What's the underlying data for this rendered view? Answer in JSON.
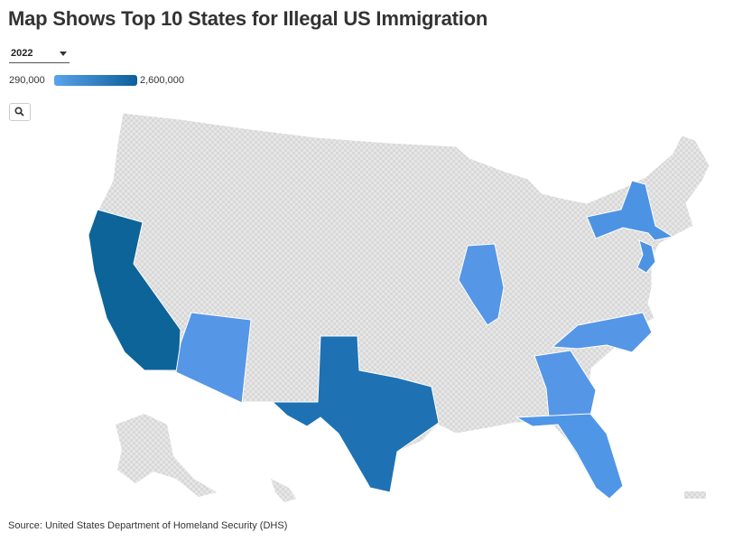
{
  "header": {
    "title": "Map Shows Top 10 States for Illegal US Immigration"
  },
  "controls": {
    "year_selected": "2022",
    "zoom_icon": "search-icon"
  },
  "legend": {
    "min_label": "290,000",
    "max_label": "2,600,000",
    "min_color": "#5aa3eb",
    "max_color": "#0d5f9a"
  },
  "map": {
    "no_data_color": "#e3e3e3",
    "highlighted_states": [
      {
        "state": "California",
        "color": "#0d6499"
      },
      {
        "state": "Texas",
        "color": "#1e72b3"
      },
      {
        "state": "Florida",
        "color": "#4f97e6"
      },
      {
        "state": "Arizona",
        "color": "#5596e6"
      },
      {
        "state": "Illinois",
        "color": "#5596e6"
      },
      {
        "state": "Georgia",
        "color": "#5596e6"
      },
      {
        "state": "North Carolina",
        "color": "#5596e6"
      },
      {
        "state": "New York",
        "color": "#4d93e3"
      },
      {
        "state": "New Jersey",
        "color": "#4d93e3"
      }
    ]
  },
  "footer": {
    "source": "Source: United States Department of Homeland Security (DHS)"
  }
}
